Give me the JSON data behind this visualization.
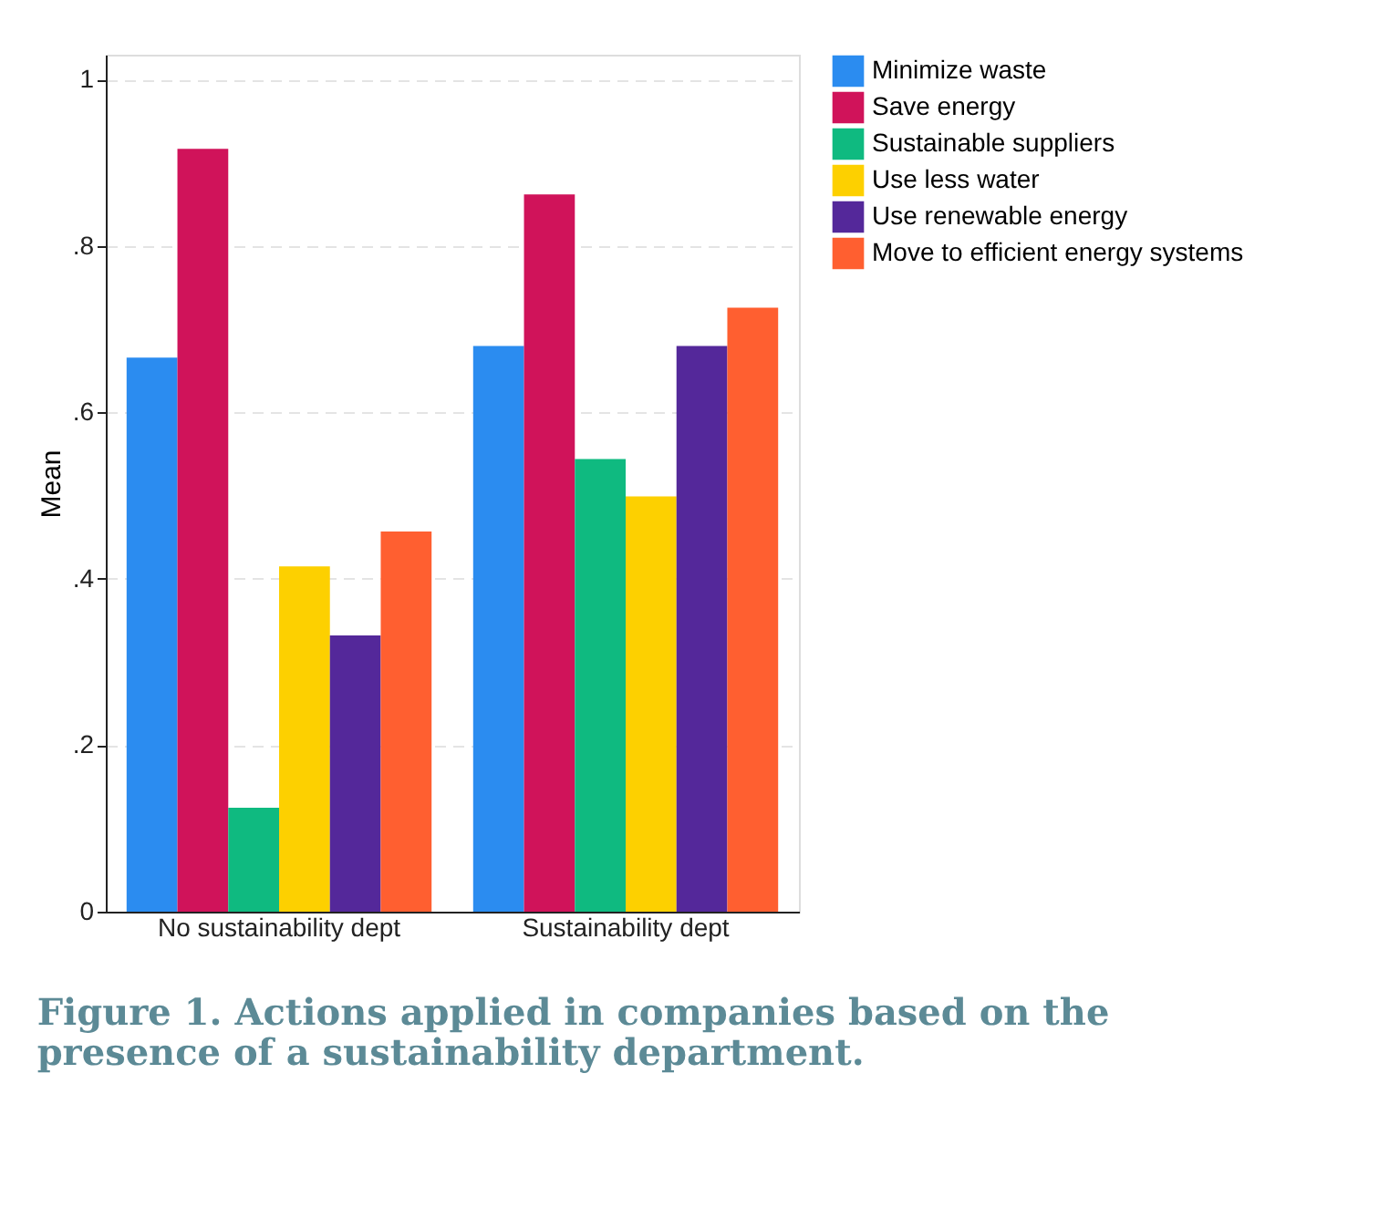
{
  "chart_data": {
    "type": "bar",
    "title": "Figure 1. Actions applied in companies based on the presence of a sustainability department.",
    "ylabel": "Mean",
    "categories": [
      "No sustainability dept",
      "Sustainability dept"
    ],
    "series": [
      {
        "name": "Minimize waste",
        "color": "#2b8cf0",
        "values": [
          0.666,
          0.68
        ]
      },
      {
        "name": "Save energy",
        "color": "#d0135a",
        "values": [
          0.917,
          0.862
        ]
      },
      {
        "name": "Sustainable suppliers",
        "color": "#0fba80",
        "values": [
          0.125,
          0.544
        ]
      },
      {
        "name": "Use less water",
        "color": "#fdd000",
        "values": [
          0.415,
          0.499
        ]
      },
      {
        "name": "Use renewable energy",
        "color": "#54289a",
        "values": [
          0.332,
          0.68
        ]
      },
      {
        "name": "Move to efficient energy systems",
        "color": "#ff5f30",
        "values": [
          0.457,
          0.726
        ]
      }
    ],
    "ylim": [
      0,
      1.03
    ],
    "yticks": [
      {
        "value": 0,
        "label": "0"
      },
      {
        "value": 0.2,
        "label": ".2"
      },
      {
        "value": 0.4,
        "label": ".4"
      },
      {
        "value": 0.6,
        "label": ".6"
      },
      {
        "value": 0.8,
        "label": ".8"
      },
      {
        "value": 1,
        "label": "1"
      }
    ],
    "grid": "y",
    "legend": "right"
  }
}
